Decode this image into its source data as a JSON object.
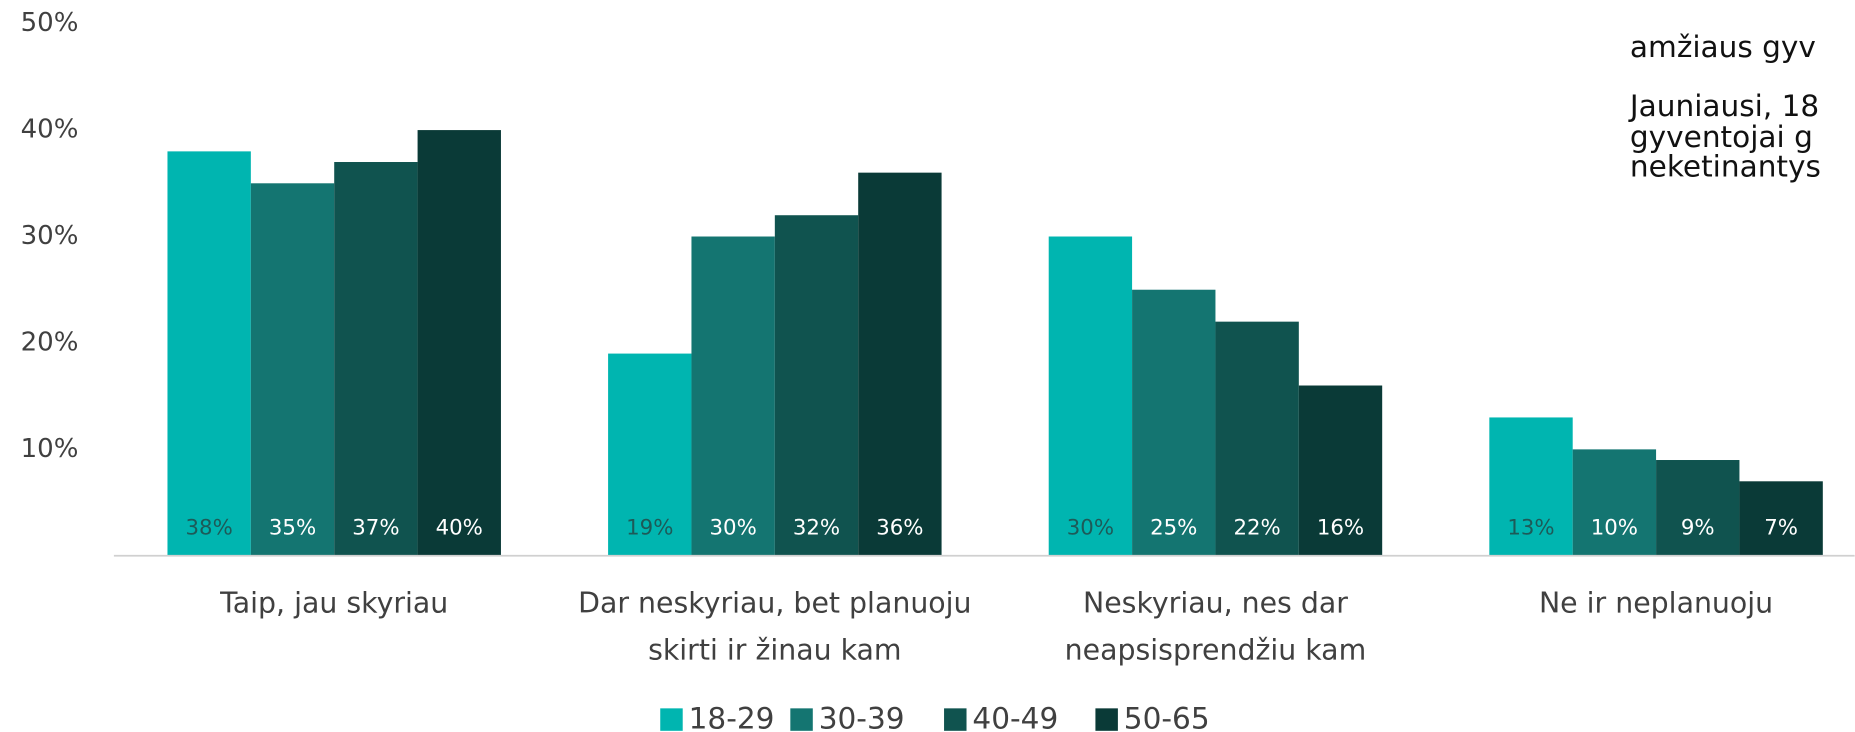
{
  "chart_data": {
    "type": "bar",
    "categories": [
      [
        "Taip, jau skyriau"
      ],
      [
        "Dar neskyriau, bet planuoju",
        "skirti ir žinau kam"
      ],
      [
        "Neskyriau, nes dar",
        "neapsisprendžiu kam"
      ],
      [
        "Ne ir neplanuoju"
      ]
    ],
    "series": [
      {
        "name": "18-29",
        "color": "#00b5b0",
        "values": [
          38,
          19,
          30,
          13
        ],
        "value_labels": [
          "38%",
          "19%",
          "30%",
          "13%"
        ]
      },
      {
        "name": "30-39",
        "color": "#147571",
        "values": [
          35,
          30,
          25,
          10
        ],
        "value_labels": [
          "35%",
          "30%",
          "25%",
          "10%"
        ]
      },
      {
        "name": "40-49",
        "color": "#10534f",
        "values": [
          37,
          32,
          22,
          9
        ],
        "value_labels": [
          "37%",
          "32%",
          "22%",
          "9%"
        ]
      },
      {
        "name": "50-65",
        "color": "#0a3a37",
        "values": [
          40,
          36,
          16,
          7
        ],
        "value_labels": [
          "40%",
          "36%",
          "16%",
          "7%"
        ]
      }
    ],
    "ylim": [
      0,
      50
    ],
    "yticks": [
      {
        "value": 10,
        "label": "10%"
      },
      {
        "value": 20,
        "label": "20%"
      },
      {
        "value": 30,
        "label": "30%"
      },
      {
        "value": 40,
        "label": "40%"
      },
      {
        "value": 50,
        "label": "50%"
      }
    ],
    "legend": "bottom",
    "annotations": [
      "amžiaus gyv",
      "Jauniausi, 18",
      "gyventojai g",
      "neketinantys"
    ]
  }
}
